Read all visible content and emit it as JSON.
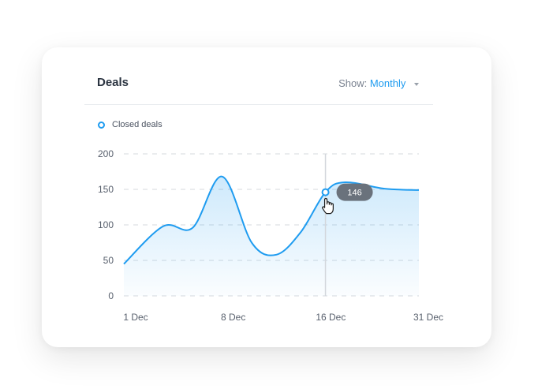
{
  "card": {
    "title": "Deals",
    "show_label": "Show:",
    "show_value": "Monthly"
  },
  "colors": {
    "accent": "#1f9cf0",
    "tooltip_bg": "#6a727c"
  },
  "icons": {
    "caret": "chevron-down-icon",
    "cursor": "hand-pointer-icon"
  },
  "chart_data": {
    "type": "area",
    "legend": "top-left",
    "grid": true,
    "ylim": [
      0,
      200
    ],
    "yticks": [
      0,
      50,
      100,
      150,
      200
    ],
    "xticks": [
      "1 Dec",
      "8 Dec",
      "16 Dec",
      "31 Dec"
    ],
    "series": [
      {
        "name": "Closed deals",
        "points": [
          {
            "x": 0,
            "y": 45
          },
          {
            "x": 4,
            "y": 98
          },
          {
            "x": 7,
            "y": 96
          },
          {
            "x": 10,
            "y": 168
          },
          {
            "x": 13,
            "y": 75
          },
          {
            "x": 15.5,
            "y": 58
          },
          {
            "x": 18,
            "y": 90
          },
          {
            "x": 20.5,
            "y": 146
          },
          {
            "x": 22.5,
            "y": 160
          },
          {
            "x": 26.5,
            "y": 151
          },
          {
            "x": 30,
            "y": 149
          }
        ]
      }
    ],
    "highlight": {
      "x": 20.5,
      "y": 146,
      "label": "146"
    }
  }
}
